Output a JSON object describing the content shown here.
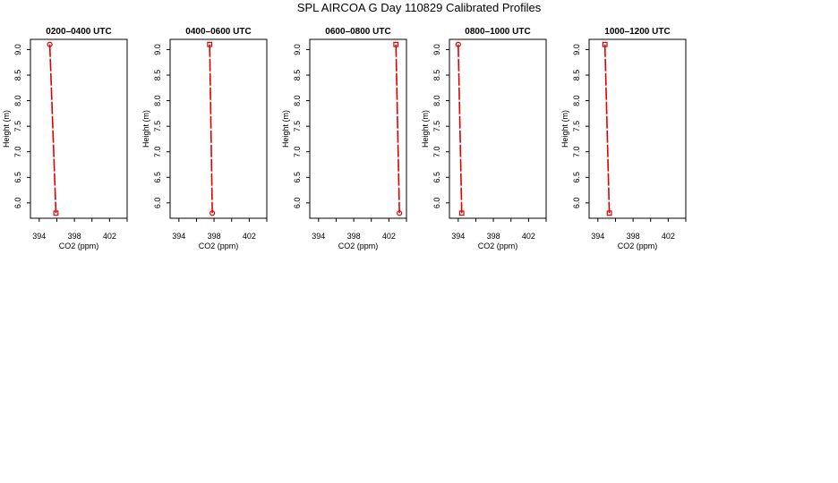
{
  "title": "SPL AIRCOA G  Day 110829  Calibrated Profiles",
  "colors": {
    "profile": "#e00000",
    "axis": "#000000",
    "background": "#ffffff"
  },
  "chart_data": [
    {
      "type": "line",
      "title": "0200–0400 UTC",
      "xlabel": "CO2 (ppm)",
      "ylabel": "Height (m)",
      "xlim": [
        393,
        404
      ],
      "ylim": [
        5.7,
        9.2
      ],
      "xticks": [
        "394",
        "398",
        "402"
      ],
      "yticks": [
        "6.0",
        "6.5",
        "7.0",
        "7.5",
        "8.0",
        "8.5",
        "9.0"
      ],
      "grid": false,
      "series": [
        {
          "x": [
            395.2,
            395.9
          ],
          "y": [
            9.1,
            5.8
          ],
          "markers": [
            "circle",
            "square"
          ]
        }
      ]
    },
    {
      "type": "line",
      "title": "0400–0600 UTC",
      "xlabel": "CO2 (ppm)",
      "ylabel": "Height (m)",
      "xlim": [
        393,
        404
      ],
      "ylim": [
        5.7,
        9.2
      ],
      "xticks": [
        "394",
        "398",
        "402"
      ],
      "yticks": [
        "6.0",
        "6.5",
        "7.0",
        "7.5",
        "8.0",
        "8.5",
        "9.0"
      ],
      "grid": false,
      "series": [
        {
          "x": [
            397.5,
            397.8
          ],
          "y": [
            9.1,
            5.8
          ],
          "markers": [
            "square",
            "circle"
          ]
        }
      ]
    },
    {
      "type": "line",
      "title": "0600–0800 UTC",
      "xlabel": "CO2 (ppm)",
      "ylabel": "Height (m)",
      "xlim": [
        393,
        404
      ],
      "ylim": [
        5.7,
        9.2
      ],
      "xticks": [
        "394",
        "398",
        "402"
      ],
      "yticks": [
        "6.0",
        "6.5",
        "7.0",
        "7.5",
        "8.0",
        "8.5",
        "9.0"
      ],
      "grid": false,
      "series": [
        {
          "x": [
            402.8,
            403.2
          ],
          "y": [
            9.1,
            5.8
          ],
          "markers": [
            "square",
            "circle"
          ]
        }
      ]
    },
    {
      "type": "line",
      "title": "0800–1000 UTC",
      "xlabel": "CO2 (ppm)",
      "ylabel": "Height (m)",
      "xlim": [
        393,
        404
      ],
      "ylim": [
        5.7,
        9.2
      ],
      "xticks": [
        "394",
        "398",
        "402"
      ],
      "yticks": [
        "6.0",
        "6.5",
        "7.0",
        "7.5",
        "8.0",
        "8.5",
        "9.0"
      ],
      "grid": false,
      "series": [
        {
          "x": [
            394.0,
            394.4
          ],
          "y": [
            9.1,
            5.8
          ],
          "markers": [
            "circle",
            "square"
          ]
        }
      ]
    },
    {
      "type": "line",
      "title": "1000–1200 UTC",
      "xlabel": "CO2 (ppm)",
      "ylabel": "Height (m)",
      "xlim": [
        393,
        404
      ],
      "ylim": [
        5.7,
        9.2
      ],
      "xticks": [
        "394",
        "398",
        "402"
      ],
      "yticks": [
        "6.0",
        "6.5",
        "7.0",
        "7.5",
        "8.0",
        "8.5",
        "9.0"
      ],
      "grid": false,
      "series": [
        {
          "x": [
            394.8,
            395.3
          ],
          "y": [
            9.1,
            5.8
          ],
          "markers": [
            "square",
            "square"
          ]
        }
      ]
    }
  ]
}
